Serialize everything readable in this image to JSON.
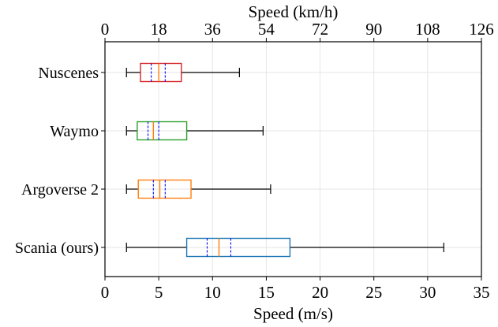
{
  "chart_data": {
    "type": "box",
    "orientation": "horizontal",
    "xlabel": "Speed (m/s)",
    "x2label": "Speed (km/h)",
    "xlim": [
      0,
      35
    ],
    "xticks": [
      0,
      5,
      10,
      15,
      20,
      25,
      30,
      35
    ],
    "x2ticks": [
      0,
      18,
      36,
      54,
      72,
      90,
      108,
      126
    ],
    "grid": true,
    "mean_line_style": "dashed",
    "categories": [
      "Nuscenes",
      "Waymo",
      "Argoverse 2",
      "Scania (ours)"
    ],
    "boxes": [
      {
        "label": "Nuscenes",
        "color": "#d62728",
        "whisker_low": 2.0,
        "q1": 3.3,
        "median": 5.0,
        "q3": 7.1,
        "whisker_high": 12.5,
        "dashed_lines": [
          4.3,
          5.6
        ]
      },
      {
        "label": "Waymo",
        "color": "#2ca02c",
        "whisker_low": 2.0,
        "q1": 3.0,
        "median": 4.5,
        "q3": 7.6,
        "whisker_high": 14.7,
        "dashed_lines": [
          4.0,
          5.0
        ]
      },
      {
        "label": "Argoverse 2",
        "color": "#ff7f0e",
        "whisker_low": 2.0,
        "q1": 3.1,
        "median": 5.1,
        "q3": 8.0,
        "whisker_high": 15.4,
        "dashed_lines": [
          4.5,
          5.6
        ]
      },
      {
        "label": "Scania (ours)",
        "color": "#1f77b4",
        "whisker_low": 2.0,
        "q1": 7.6,
        "median": 10.6,
        "q3": 17.2,
        "whisker_high": 31.5,
        "dashed_lines": [
          9.5,
          11.7
        ]
      }
    ],
    "colors": {
      "mean_dash": "#0000ff",
      "median_line": "#ff7f0e",
      "whisker": "#000000",
      "grid": "#e6e6e6"
    }
  }
}
